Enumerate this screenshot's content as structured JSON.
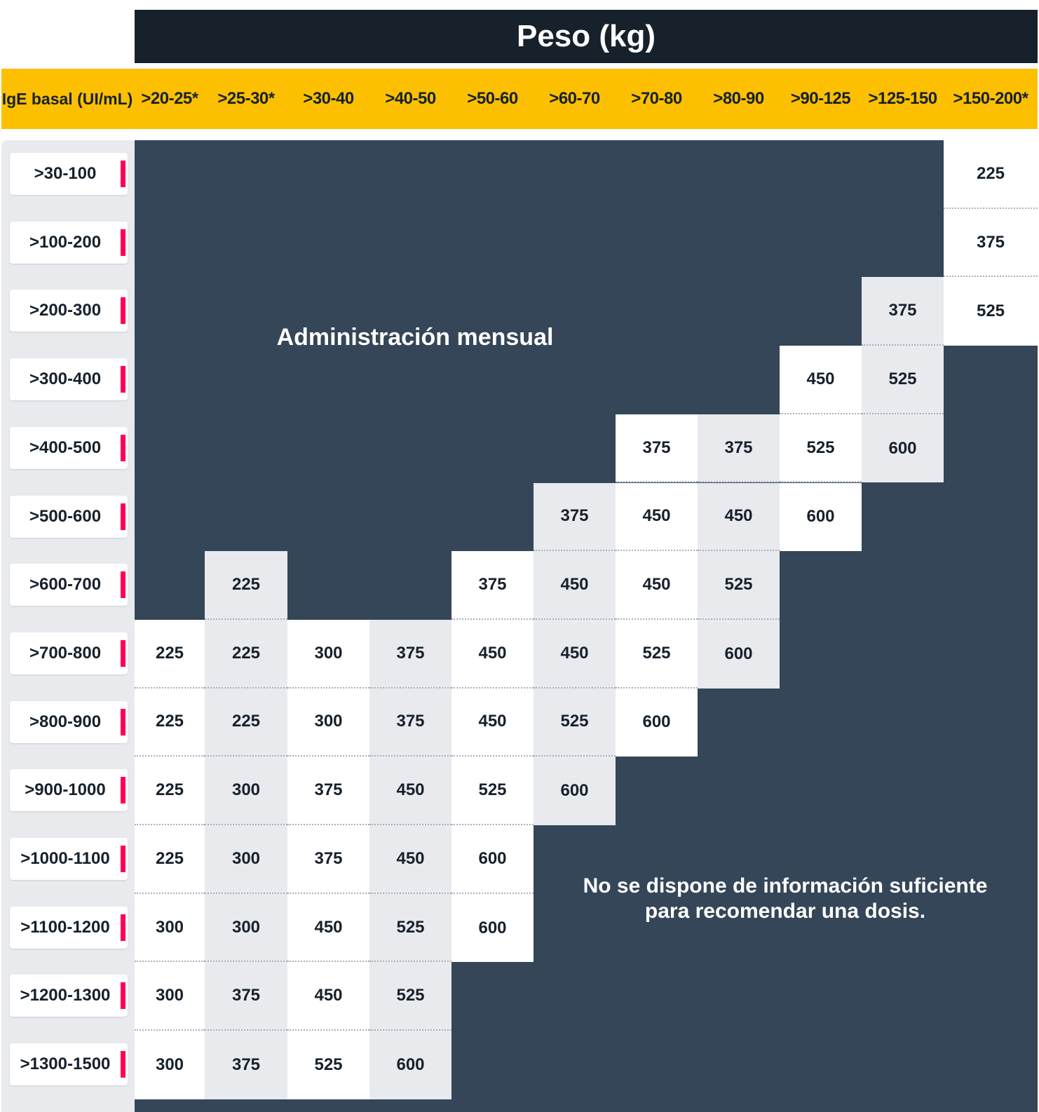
{
  "chart_data": {
    "type": "table",
    "title": "Peso (kg)",
    "row_header": "IgE basal (UI/mL)",
    "columns": [
      ">20-25*",
      ">25-30*",
      ">30-40",
      ">40-50",
      ">50-60",
      ">60-70",
      ">70-80",
      ">80-90",
      ">90-125",
      ">125-150",
      ">150-200*"
    ],
    "rows": [
      ">30-100",
      ">100-200",
      ">200-300",
      ">300-400",
      ">400-500",
      ">500-600",
      ">600-700",
      ">700-800",
      ">800-900",
      ">900-1000",
      ">1000-1100",
      ">1100-1200",
      ">1200-1300",
      ">1300-1500"
    ],
    "values": [
      [
        null,
        null,
        null,
        null,
        null,
        null,
        null,
        null,
        null,
        null,
        225
      ],
      [
        null,
        null,
        null,
        null,
        null,
        null,
        null,
        null,
        null,
        null,
        375
      ],
      [
        null,
        null,
        null,
        null,
        null,
        null,
        null,
        null,
        null,
        375,
        525
      ],
      [
        null,
        null,
        null,
        null,
        null,
        null,
        null,
        null,
        450,
        525,
        null
      ],
      [
        null,
        null,
        null,
        null,
        null,
        null,
        375,
        375,
        525,
        600,
        null
      ],
      [
        null,
        null,
        null,
        null,
        null,
        375,
        450,
        450,
        600,
        null,
        null
      ],
      [
        null,
        225,
        null,
        null,
        375,
        450,
        450,
        525,
        null,
        null,
        null
      ],
      [
        225,
        225,
        300,
        375,
        450,
        450,
        525,
        600,
        null,
        null,
        null
      ],
      [
        225,
        225,
        300,
        375,
        450,
        525,
        600,
        null,
        null,
        null,
        null
      ],
      [
        225,
        300,
        375,
        450,
        525,
        600,
        null,
        null,
        null,
        null,
        null
      ],
      [
        225,
        300,
        375,
        450,
        600,
        null,
        null,
        null,
        null,
        null,
        null
      ],
      [
        300,
        300,
        450,
        525,
        600,
        null,
        null,
        null,
        null,
        null,
        null
      ],
      [
        300,
        375,
        450,
        525,
        null,
        null,
        null,
        null,
        null,
        null,
        null
      ],
      [
        300,
        375,
        525,
        600,
        null,
        null,
        null,
        null,
        null,
        null,
        null
      ]
    ],
    "regions": {
      "monthly": "Administración mensual",
      "no_info_line1": "No se dispone de información suficiente",
      "no_info_line2": "para recomendar una dosis."
    },
    "colors": {
      "header_dark": "#17212b",
      "weight_band": "#fcc000",
      "empty_region": "#344658",
      "cell_light": "#ffffff",
      "cell_alt": "#e8eaee",
      "row_marker": "#ff0055"
    }
  }
}
